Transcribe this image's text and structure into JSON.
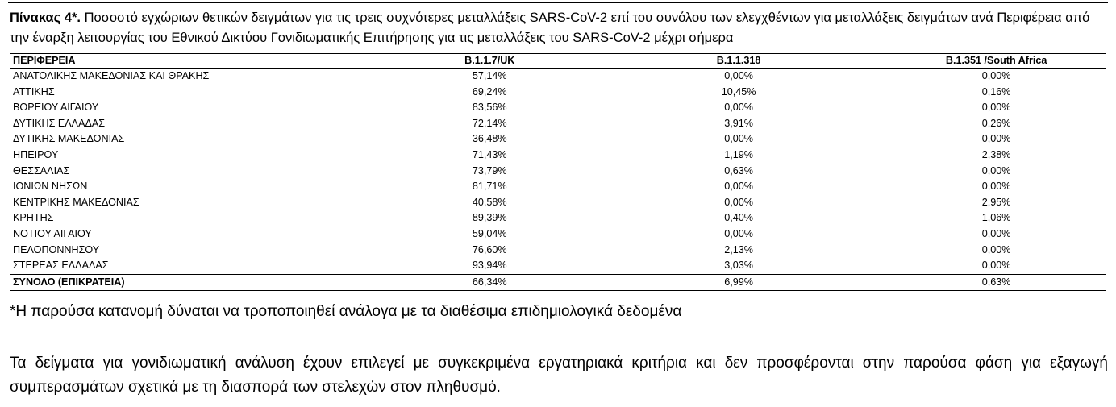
{
  "caption": {
    "label": "Πίνακας 4*.",
    "text": "Ποσοστό εγχώριων θετικών δειγμάτων για τις τρεις συχνότερες μεταλλάξεις SARS-CoV-2 επί του συνόλου των ελεγχθέντων για μεταλλάξεις δειγμάτων ανά Περιφέρεια από την έναρξη λειτουργίας του Εθνικού Δικτύου Γονιδιωματικής Επιτήρησης για τις μεταλλάξεις του SARS-CoV-2 μέχρι σήμερα"
  },
  "table": {
    "headers": {
      "region": "ΠΕΡΙΦΕΡΕΙΑ",
      "v1": "B.1.1.7/UK",
      "v2": "B.1.1.318",
      "v3": "B.1.351 /South Africa"
    },
    "rows": [
      {
        "region": "ΑΝΑΤΟΛΙΚΗΣ ΜΑΚΕΔΟΝΙΑΣ ΚΑΙ ΘΡΑΚΗΣ",
        "v1": "57,14%",
        "v2": "0,00%",
        "v3": "0,00%"
      },
      {
        "region": "ΑΤΤΙΚΗΣ",
        "v1": "69,24%",
        "v2": "10,45%",
        "v3": "0,16%"
      },
      {
        "region": "ΒΟΡΕΙΟΥ ΑΙΓΑΙΟΥ",
        "v1": "83,56%",
        "v2": "0,00%",
        "v3": "0,00%"
      },
      {
        "region": "ΔΥΤΙΚΗΣ ΕΛΛΑΔΑΣ",
        "v1": "72,14%",
        "v2": "3,91%",
        "v3": "0,26%"
      },
      {
        "region": "ΔΥΤΙΚΗΣ ΜΑΚΕΔΟΝΙΑΣ",
        "v1": "36,48%",
        "v2": "0,00%",
        "v3": "0,00%"
      },
      {
        "region": "ΗΠΕΙΡΟΥ",
        "v1": "71,43%",
        "v2": "1,19%",
        "v3": "2,38%"
      },
      {
        "region": "ΘΕΣΣΑΛΙΑΣ",
        "v1": "73,79%",
        "v2": "0,63%",
        "v3": "0,00%"
      },
      {
        "region": "ΙΟΝΙΩΝ ΝΗΣΩΝ",
        "v1": "81,71%",
        "v2": "0,00%",
        "v3": "0,00%"
      },
      {
        "region": "ΚΕΝΤΡΙΚΗΣ ΜΑΚΕΔΟΝΙΑΣ",
        "v1": "40,58%",
        "v2": "0,00%",
        "v3": "2,95%"
      },
      {
        "region": "ΚΡΗΤΗΣ",
        "v1": "89,39%",
        "v2": "0,40%",
        "v3": "1,06%"
      },
      {
        "region": "ΝΟΤΙΟΥ ΑΙΓΑΙΟΥ",
        "v1": "59,04%",
        "v2": "0,00%",
        "v3": "0,00%"
      },
      {
        "region": "ΠΕΛΟΠΟΝΝΗΣΟΥ",
        "v1": "76,60%",
        "v2": "2,13%",
        "v3": "0,00%"
      },
      {
        "region": "ΣΤΕΡΕΑΣ ΕΛΛΑΔΑΣ",
        "v1": "93,94%",
        "v2": "3,03%",
        "v3": "0,00%"
      }
    ],
    "total": {
      "region": "ΣΥΝΟΛΟ (ΕΠΙΚΡΑΤΕΙΑ)",
      "v1": "66,34%",
      "v2": "6,99%",
      "v3": "0,63%"
    }
  },
  "footnote": "*Η παρούσα κατανομή δύναται να τροποποιηθεί ανάλογα με τα διαθέσιμα επιδημιολογικά δεδομένα",
  "paragraph": "Τα δείγματα για γονιδιωματική ανάλυση έχουν επιλεγεί με συγκεκριμένα εργατηριακά κριτήρια και δεν προσφέρονται στην παρούσα φάση για εξαγωγή συμπερασμάτων σχετικά με τη διασπορά των στελεχών στον πληθυσμό."
}
